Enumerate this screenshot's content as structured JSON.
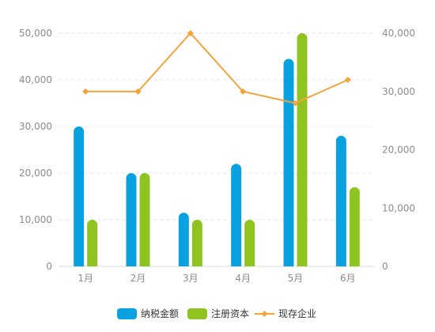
{
  "chart_data": {
    "type": "bar",
    "title": "",
    "xlabel": "",
    "ylabel": "",
    "categories": [
      "1月",
      "2月",
      "3月",
      "4月",
      "5月",
      "6月"
    ],
    "ylim_left": [
      0,
      50000
    ],
    "yticks_left": [
      "0",
      "10,000",
      "20,000",
      "30,000",
      "40,000",
      "50,000"
    ],
    "ylim_right": [
      0,
      40000
    ],
    "yticks_right": [
      "0",
      "10,000",
      "20,000",
      "30,000",
      "40,000"
    ],
    "grid": true,
    "legend_position": "bottom",
    "series": [
      {
        "name": "纳税金额",
        "type": "bar",
        "axis": "left",
        "color": "#0aa1e0",
        "values": [
          30000,
          20000,
          11500,
          22000,
          44500,
          28000
        ]
      },
      {
        "name": "注册资本",
        "type": "bar",
        "axis": "left",
        "color": "#8fc31f",
        "values": [
          10000,
          20000,
          10000,
          10000,
          50000,
          17000
        ]
      },
      {
        "name": "现存企业",
        "type": "line",
        "axis": "right",
        "color": "#f5a23a",
        "values": [
          30000,
          30000,
          40000,
          30000,
          28000,
          32000
        ]
      }
    ]
  }
}
